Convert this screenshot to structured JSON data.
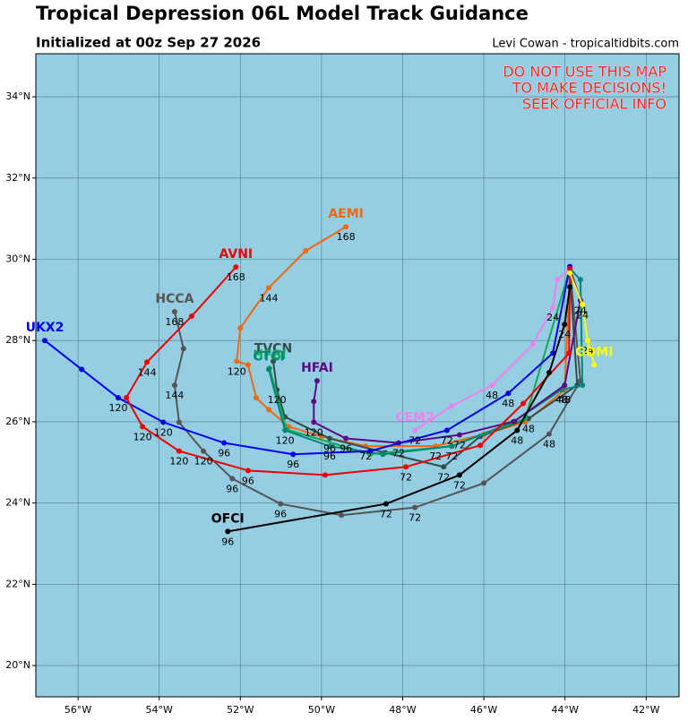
{
  "header": {
    "title": "Tropical Depression 06L Model Track Guidance",
    "subtitle": "Initialized at 00z Sep 27 2026",
    "credit": "Levi Cowan - tropicaltidbits.com"
  },
  "map": {
    "lonlim": [
      -57.04,
      -41.19
    ],
    "latlim": [
      19.23,
      35.06
    ],
    "lonticks": [
      {
        "value": -56,
        "label": "56°W"
      },
      {
        "value": -54,
        "label": "54°W"
      },
      {
        "value": -52,
        "label": "52°W"
      },
      {
        "value": -50,
        "label": "50°W"
      },
      {
        "value": -48,
        "label": "48°W"
      },
      {
        "value": -46,
        "label": "46°W"
      },
      {
        "value": -44,
        "label": "44°W"
      },
      {
        "value": -42,
        "label": "42°W"
      }
    ],
    "latticks": [
      {
        "value": 20,
        "label": "20°N"
      },
      {
        "value": 22,
        "label": "22°N"
      },
      {
        "value": 24,
        "label": "24°N"
      },
      {
        "value": 26,
        "label": "26°N"
      },
      {
        "value": 28,
        "label": "28°N"
      },
      {
        "value": 30,
        "label": "30°N"
      },
      {
        "value": 32,
        "label": "32°N"
      },
      {
        "value": 34,
        "label": "34°N"
      }
    ],
    "grid": true,
    "warning": [
      "DO NOT USE THIS MAP",
      "TO MAKE DECISIONS!",
      "SEEK OFFICIAL INFO"
    ],
    "tracks": [
      {
        "name": "HCCA",
        "color": "#555555",
        "lon": [
          -43.88,
          -43.62,
          -44.39,
          -46.0,
          -47.7,
          -49.51,
          -51.01,
          -52.2,
          -52.91,
          -53.51,
          -53.62,
          -53.4,
          -53.62
        ],
        "lat": [
          29.77,
          27.01,
          25.7,
          24.49,
          23.89,
          23.7,
          23.98,
          24.6,
          25.28,
          25.99,
          26.9,
          27.8,
          28.71
        ],
        "hours": [
          null,
          null,
          48,
          null,
          72,
          null,
          96,
          96,
          120,
          null,
          144,
          null,
          168
        ]
      },
      {
        "name": "AEMI",
        "color": "#ee6a10",
        "lon": [
          -43.88,
          -44.01,
          -44.98,
          -46.0,
          -47.19,
          -48.91,
          -50.0,
          -50.81,
          -51.3,
          -51.61,
          -51.81,
          -52.09,
          -52.0,
          -51.3,
          -50.39,
          -49.4
        ],
        "lat": [
          29.66,
          26.79,
          25.99,
          25.69,
          25.4,
          25.4,
          25.64,
          25.88,
          26.3,
          26.59,
          27.4,
          27.49,
          28.31,
          29.3,
          30.21,
          30.8
        ],
        "hours": [
          null,
          48,
          null,
          null,
          72,
          72,
          null,
          null,
          null,
          null,
          null,
          120,
          null,
          144,
          null,
          168
        ]
      },
      {
        "name": "TVCN",
        "color": "#2f4f4f",
        "lon": [
          -43.88,
          -43.7,
          -44.9,
          -46.09,
          -46.99,
          -48.43,
          -49.8,
          -50.9,
          -51.1,
          -51.19
        ],
        "lat": [
          29.66,
          26.9,
          26.08,
          25.64,
          24.89,
          25.24,
          25.59,
          26.12,
          26.79,
          27.49
        ],
        "hours": [
          null,
          null,
          48,
          null,
          72,
          null,
          96,
          null,
          120,
          null
        ]
      },
      {
        "name": "HFBI",
        "color": "#11aa55",
        "lon": [
          -43.88,
          -44.98,
          -46.79,
          -48.8,
          -50.86,
          -51.28
        ],
        "lat": [
          29.77,
          26.08,
          25.4,
          25.2,
          25.81,
          27.32
        ],
        "hours": [
          null,
          null,
          null,
          null,
          null,
          null
        ]
      },
      {
        "name": "CTCI",
        "color": "#008877",
        "lon": [
          -43.88,
          -43.62,
          -43.57,
          -44.08,
          -45.29,
          -46.79,
          -48.49,
          -49.8,
          -50.9,
          -51.3
        ],
        "lat": [
          29.77,
          29.5,
          26.9,
          26.79,
          25.99,
          25.4,
          25.2,
          25.4,
          25.79,
          27.29
        ],
        "hours": [
          null,
          null,
          null,
          48,
          null,
          72,
          null,
          96,
          120,
          null
        ]
      },
      {
        "name": "HFAI",
        "color": "#5b0a82",
        "lon": [
          -43.88,
          -43.62,
          -44.01,
          -45.25,
          -46.6,
          -48.1,
          -49.4,
          -50.19,
          -50.19,
          -50.11
        ],
        "lat": [
          29.77,
          28.99,
          26.9,
          26.01,
          25.68,
          25.48,
          25.59,
          25.99,
          26.5,
          27.01
        ],
        "hours": [
          null,
          24,
          null,
          null,
          72,
          72,
          96,
          120,
          null,
          null
        ]
      },
      {
        "name": "CEM2",
        "color": "#ee82ee",
        "lon": [
          -43.88,
          -44.19,
          -44.3,
          -44.79,
          -45.8,
          -46.79,
          -47.7
        ],
        "lat": [
          29.77,
          29.5,
          28.82,
          27.91,
          26.9,
          26.39,
          25.79
        ],
        "hours": [
          null,
          null,
          24,
          null,
          48,
          null,
          72
        ]
      },
      {
        "name": "UKX2",
        "color": "#0000ee",
        "lon": [
          -43.88,
          -44.3,
          -45.4,
          -46.91,
          -48.8,
          -50.7,
          -52.4,
          -53.9,
          -55.01,
          -55.91,
          -56.82
        ],
        "lat": [
          29.82,
          27.69,
          26.7,
          25.79,
          25.28,
          25.2,
          25.48,
          25.99,
          26.59,
          27.29,
          28.0
        ],
        "hours": [
          null,
          null,
          48,
          72,
          null,
          96,
          96,
          120,
          120,
          null,
          null
        ]
      },
      {
        "name": "AVNI",
        "color": "#ee0000",
        "lon": [
          -43.88,
          -43.9,
          -45.03,
          -46.09,
          -47.92,
          -49.91,
          -51.81,
          -53.51,
          -54.41,
          -54.81,
          -54.3,
          -53.2,
          -52.11
        ],
        "lat": [
          29.77,
          27.69,
          26.45,
          25.42,
          24.89,
          24.69,
          24.8,
          25.28,
          25.88,
          26.59,
          27.47,
          28.6,
          29.81
        ],
        "hours": [
          null,
          null,
          null,
          null,
          72,
          null,
          96,
          120,
          120,
          null,
          144,
          null,
          168
        ]
      },
      {
        "name": "OFCI",
        "color": "#000000",
        "lon": [
          -43.88,
          -44.01,
          -44.39,
          -45.18,
          -46.6,
          -48.41,
          -52.31
        ],
        "lat": [
          29.32,
          28.4,
          27.21,
          25.79,
          24.69,
          23.98,
          23.3
        ],
        "hours": [
          null,
          24,
          null,
          48,
          72,
          72,
          96
        ]
      },
      {
        "name": "GDMI",
        "color": "#ffff00",
        "lon": [
          -43.88,
          -43.57,
          -43.44,
          -43.28
        ],
        "lat": [
          29.66,
          28.88,
          28.0,
          27.4
        ],
        "hours": [
          null,
          24,
          24,
          null
        ]
      }
    ]
  }
}
